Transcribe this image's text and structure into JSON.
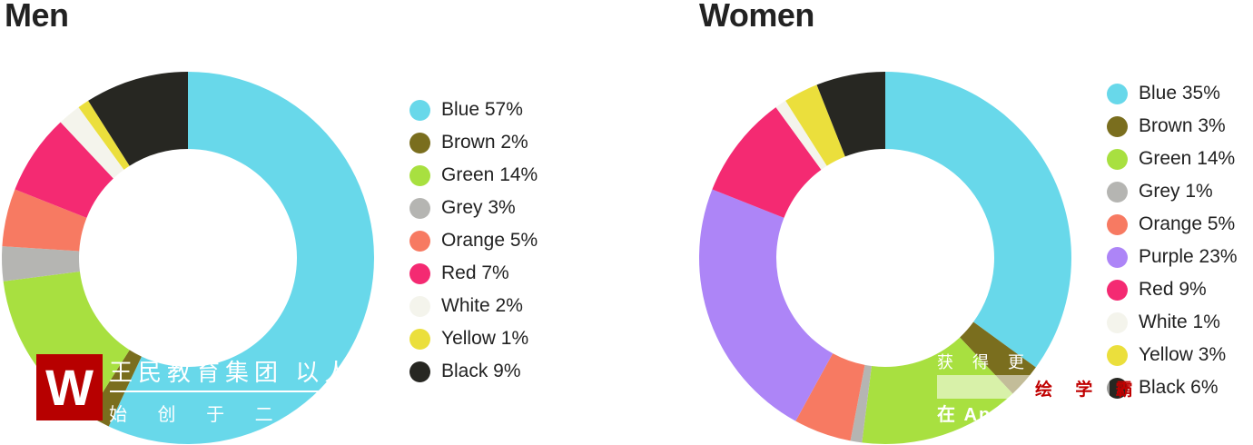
{
  "chart_data": [
    {
      "type": "pie",
      "donut": true,
      "title": "Men",
      "legend": "right",
      "slices": [
        {
          "name": "Blue",
          "label": "Blue 57%",
          "value": 57,
          "color": "#68d8ea"
        },
        {
          "name": "Brown",
          "label": "Brown 2%",
          "value": 2,
          "color": "#7a6e1e"
        },
        {
          "name": "Green",
          "label": "Green 14%",
          "value": 14,
          "color": "#a8e040"
        },
        {
          "name": "Grey",
          "label": "Grey 3%",
          "value": 3,
          "color": "#b5b5b2"
        },
        {
          "name": "Orange",
          "label": "Orange 5%",
          "value": 5,
          "color": "#f77a62"
        },
        {
          "name": "Red",
          "label": "Red 7%",
          "value": 7,
          "color": "#f42a72"
        },
        {
          "name": "White",
          "label": "White 2%",
          "value": 2,
          "color": "#f4f4ec"
        },
        {
          "name": "Yellow",
          "label": "Yellow 1%",
          "value": 1,
          "color": "#ebdf3c"
        },
        {
          "name": "Black",
          "label": "Black 9%",
          "value": 9,
          "color": "#272722"
        }
      ]
    },
    {
      "type": "pie",
      "donut": true,
      "title": "Women",
      "legend": "right",
      "slices": [
        {
          "name": "Blue",
          "label": "Blue 35%",
          "value": 35,
          "color": "#68d8ea"
        },
        {
          "name": "Brown",
          "label": "Brown 3%",
          "value": 3,
          "color": "#7a6e1e"
        },
        {
          "name": "Green",
          "label": "Green 14%",
          "value": 14,
          "color": "#a8e040"
        },
        {
          "name": "Grey",
          "label": "Grey 1%",
          "value": 1,
          "color": "#b5b5b2"
        },
        {
          "name": "Orange",
          "label": "Orange 5%",
          "value": 5,
          "color": "#f77a62"
        },
        {
          "name": "Purple",
          "label": "Purple 23%",
          "value": 23,
          "color": "#ad85f7"
        },
        {
          "name": "Red",
          "label": "Red 9%",
          "value": 9,
          "color": "#f42a72"
        },
        {
          "name": "White",
          "label": "White 1%",
          "value": 1,
          "color": "#f4f4ec"
        },
        {
          "name": "Yellow",
          "label": "Yellow 3%",
          "value": 3,
          "color": "#ebdf3c"
        },
        {
          "name": "Black",
          "label": "Black 6%",
          "value": 6,
          "color": "#272722"
        }
      ]
    }
  ],
  "watermark": {
    "line1": "王民教育集团  以人",
    "line2": "始 创 于 二 零 一",
    "line3": "获 得 更 多",
    "line4": "在 App",
    "line5": "绘 学 霸",
    "logo": "W"
  }
}
